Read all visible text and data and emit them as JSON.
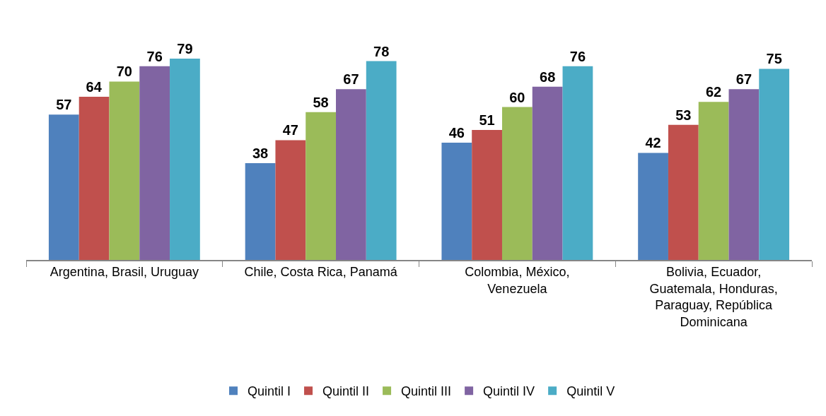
{
  "chart_data": {
    "type": "bar",
    "categories": [
      "Argentina, Brasil, Uruguay",
      "Chile, Costa Rica, Panamá",
      "Colombia, México, Venezuela",
      "Bolivia, Ecuador, Guatemala, Honduras, Paraguay, República Dominicana"
    ],
    "series": [
      {
        "name": "Quintil I",
        "color": "#4f81bd",
        "values": [
          57,
          38,
          46,
          42
        ]
      },
      {
        "name": "Quintil II",
        "color": "#c0504d",
        "values": [
          64,
          47,
          51,
          53
        ]
      },
      {
        "name": "Quintil III",
        "color": "#9bbb59",
        "values": [
          70,
          58,
          60,
          62
        ]
      },
      {
        "name": "Quintil IV",
        "color": "#8064a2",
        "values": [
          76,
          67,
          68,
          67
        ]
      },
      {
        "name": "Quintil V",
        "color": "#4bacc6",
        "values": [
          79,
          78,
          76,
          75
        ]
      }
    ],
    "data_labels": true,
    "legend": "bottom",
    "tick_labels": "x"
  }
}
